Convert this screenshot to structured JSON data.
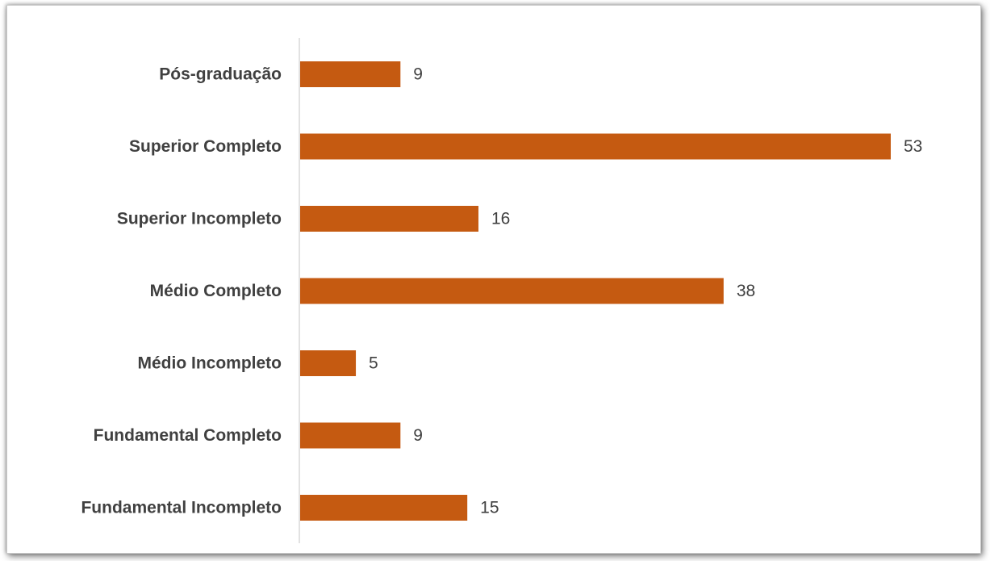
{
  "chart_data": {
    "type": "bar",
    "orientation": "horizontal",
    "categories": [
      "Pós-graduação",
      "Superior Completo",
      "Superior Incompleto",
      "Médio Completo",
      "Médio Incompleto",
      "Fundamental Completo",
      "Fundamental Incompleto"
    ],
    "values": [
      9,
      53,
      16,
      38,
      5,
      9,
      15
    ],
    "title": "",
    "xlabel": "",
    "ylabel": "",
    "xlim": [
      0,
      53
    ],
    "grid": false,
    "legend": "none",
    "bar_color": "#C55A11",
    "axis_color": "#d9d9d9",
    "label_color": "#404040"
  }
}
